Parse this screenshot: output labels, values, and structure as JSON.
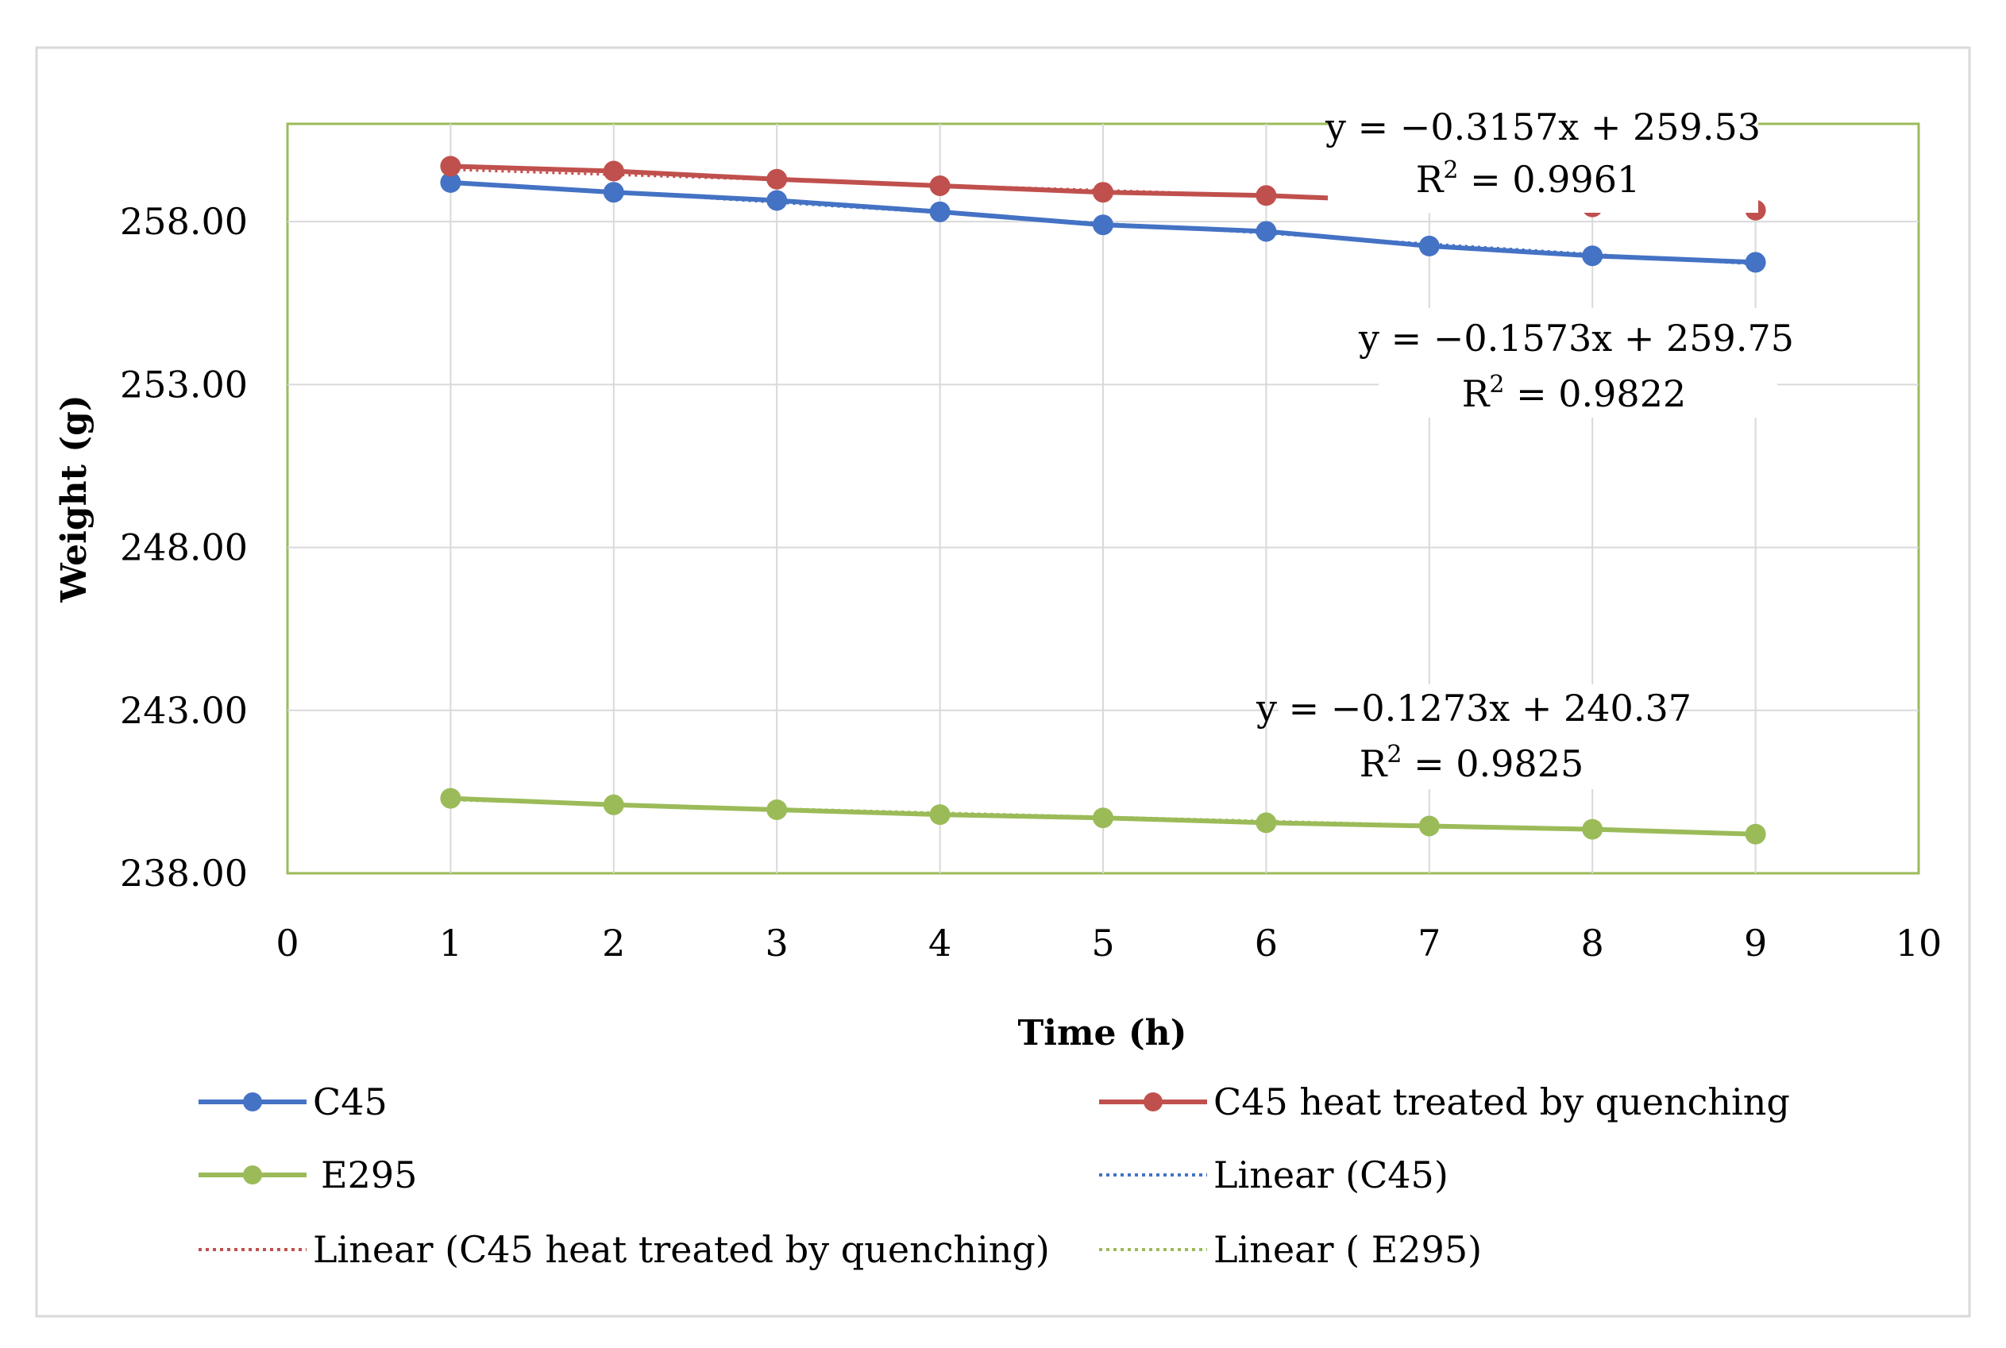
{
  "chart_data": {
    "type": "line",
    "title": "",
    "xlabel": "Time (h)",
    "ylabel": "Weight (g)",
    "xlim": [
      0,
      10
    ],
    "ylim": [
      238,
      261
    ],
    "x_ticks": [
      0,
      1,
      2,
      3,
      4,
      5,
      6,
      7,
      8,
      9,
      10
    ],
    "x_tick_labels": [
      "0",
      "1",
      "2",
      "3",
      "4",
      "5",
      "6",
      "7",
      "8",
      "9",
      "10"
    ],
    "y_ticks": [
      238,
      243,
      248,
      253,
      258
    ],
    "y_tick_labels": [
      "238.00",
      "243.00",
      "248.00",
      "253.00",
      "258.00"
    ],
    "grid": true,
    "legend_position": "bottom",
    "x": [
      1,
      2,
      3,
      4,
      5,
      6,
      7,
      8,
      9
    ],
    "series": [
      {
        "name": "C45",
        "color": "#4472C4",
        "values": [
          259.2,
          258.9,
          258.65,
          258.3,
          257.9,
          257.7,
          257.25,
          256.95,
          256.75
        ]
      },
      {
        "name": "C45 heat treated by quenching",
        "color": "#C0504D",
        "values": [
          259.7,
          259.55,
          259.3,
          259.1,
          258.9,
          258.8,
          258.6,
          258.45,
          258.35
        ]
      },
      {
        "name": "E295",
        "color": "#9BBB59",
        "values": [
          240.3,
          240.1,
          239.95,
          239.8,
          239.7,
          239.55,
          239.45,
          239.35,
          239.2
        ]
      }
    ],
    "trendlines": [
      {
        "name": "Linear (C45)",
        "series": "C45",
        "color": "#4472C4",
        "slope": -0.3157,
        "intercept": 259.53,
        "equation": "y = −0.3157x  + 259.53",
        "r2_prefix": "R",
        "r2_suffix": " = 0.9961"
      },
      {
        "name": "Linear (C45 heat treated by quenching)",
        "series": "C45 heat treated by quenching",
        "color": "#C0504D",
        "slope": -0.1573,
        "intercept": 259.75,
        "equation": "y = −0.1573x + 259.75",
        "r2_prefix": "R",
        "r2_suffix": " = 0.9822"
      },
      {
        "name": "Linear ( E295)",
        "series": "E295",
        "color": "#9BBB59",
        "slope": -0.1273,
        "intercept": 240.37,
        "equation": "y = −0.1273x + 240.37",
        "r2_prefix": "R",
        "r2_suffix": " = 0.9825"
      }
    ],
    "legend": [
      {
        "label": "C45",
        "series": "C45",
        "style": "line-marker",
        "color": "#4472C4"
      },
      {
        "label": "C45 heat treated by quenching",
        "series": "C45 heat treated by quenching",
        "style": "line-marker",
        "color": "#C0504D"
      },
      {
        "label": "E295",
        "series": "E295",
        "style": "line-marker",
        "color": "#9BBB59"
      },
      {
        "label": "Linear (C45)",
        "series": "C45",
        "style": "dotted",
        "color": "#4472C4"
      },
      {
        "label": "Linear (C45 heat treated by quenching)",
        "series": "C45 heat treated by quenching",
        "style": "dotted",
        "color": "#C0504D"
      },
      {
        "label": "Linear ( E295)",
        "series": "E295",
        "style": "dotted",
        "color": "#9BBB59"
      }
    ]
  }
}
